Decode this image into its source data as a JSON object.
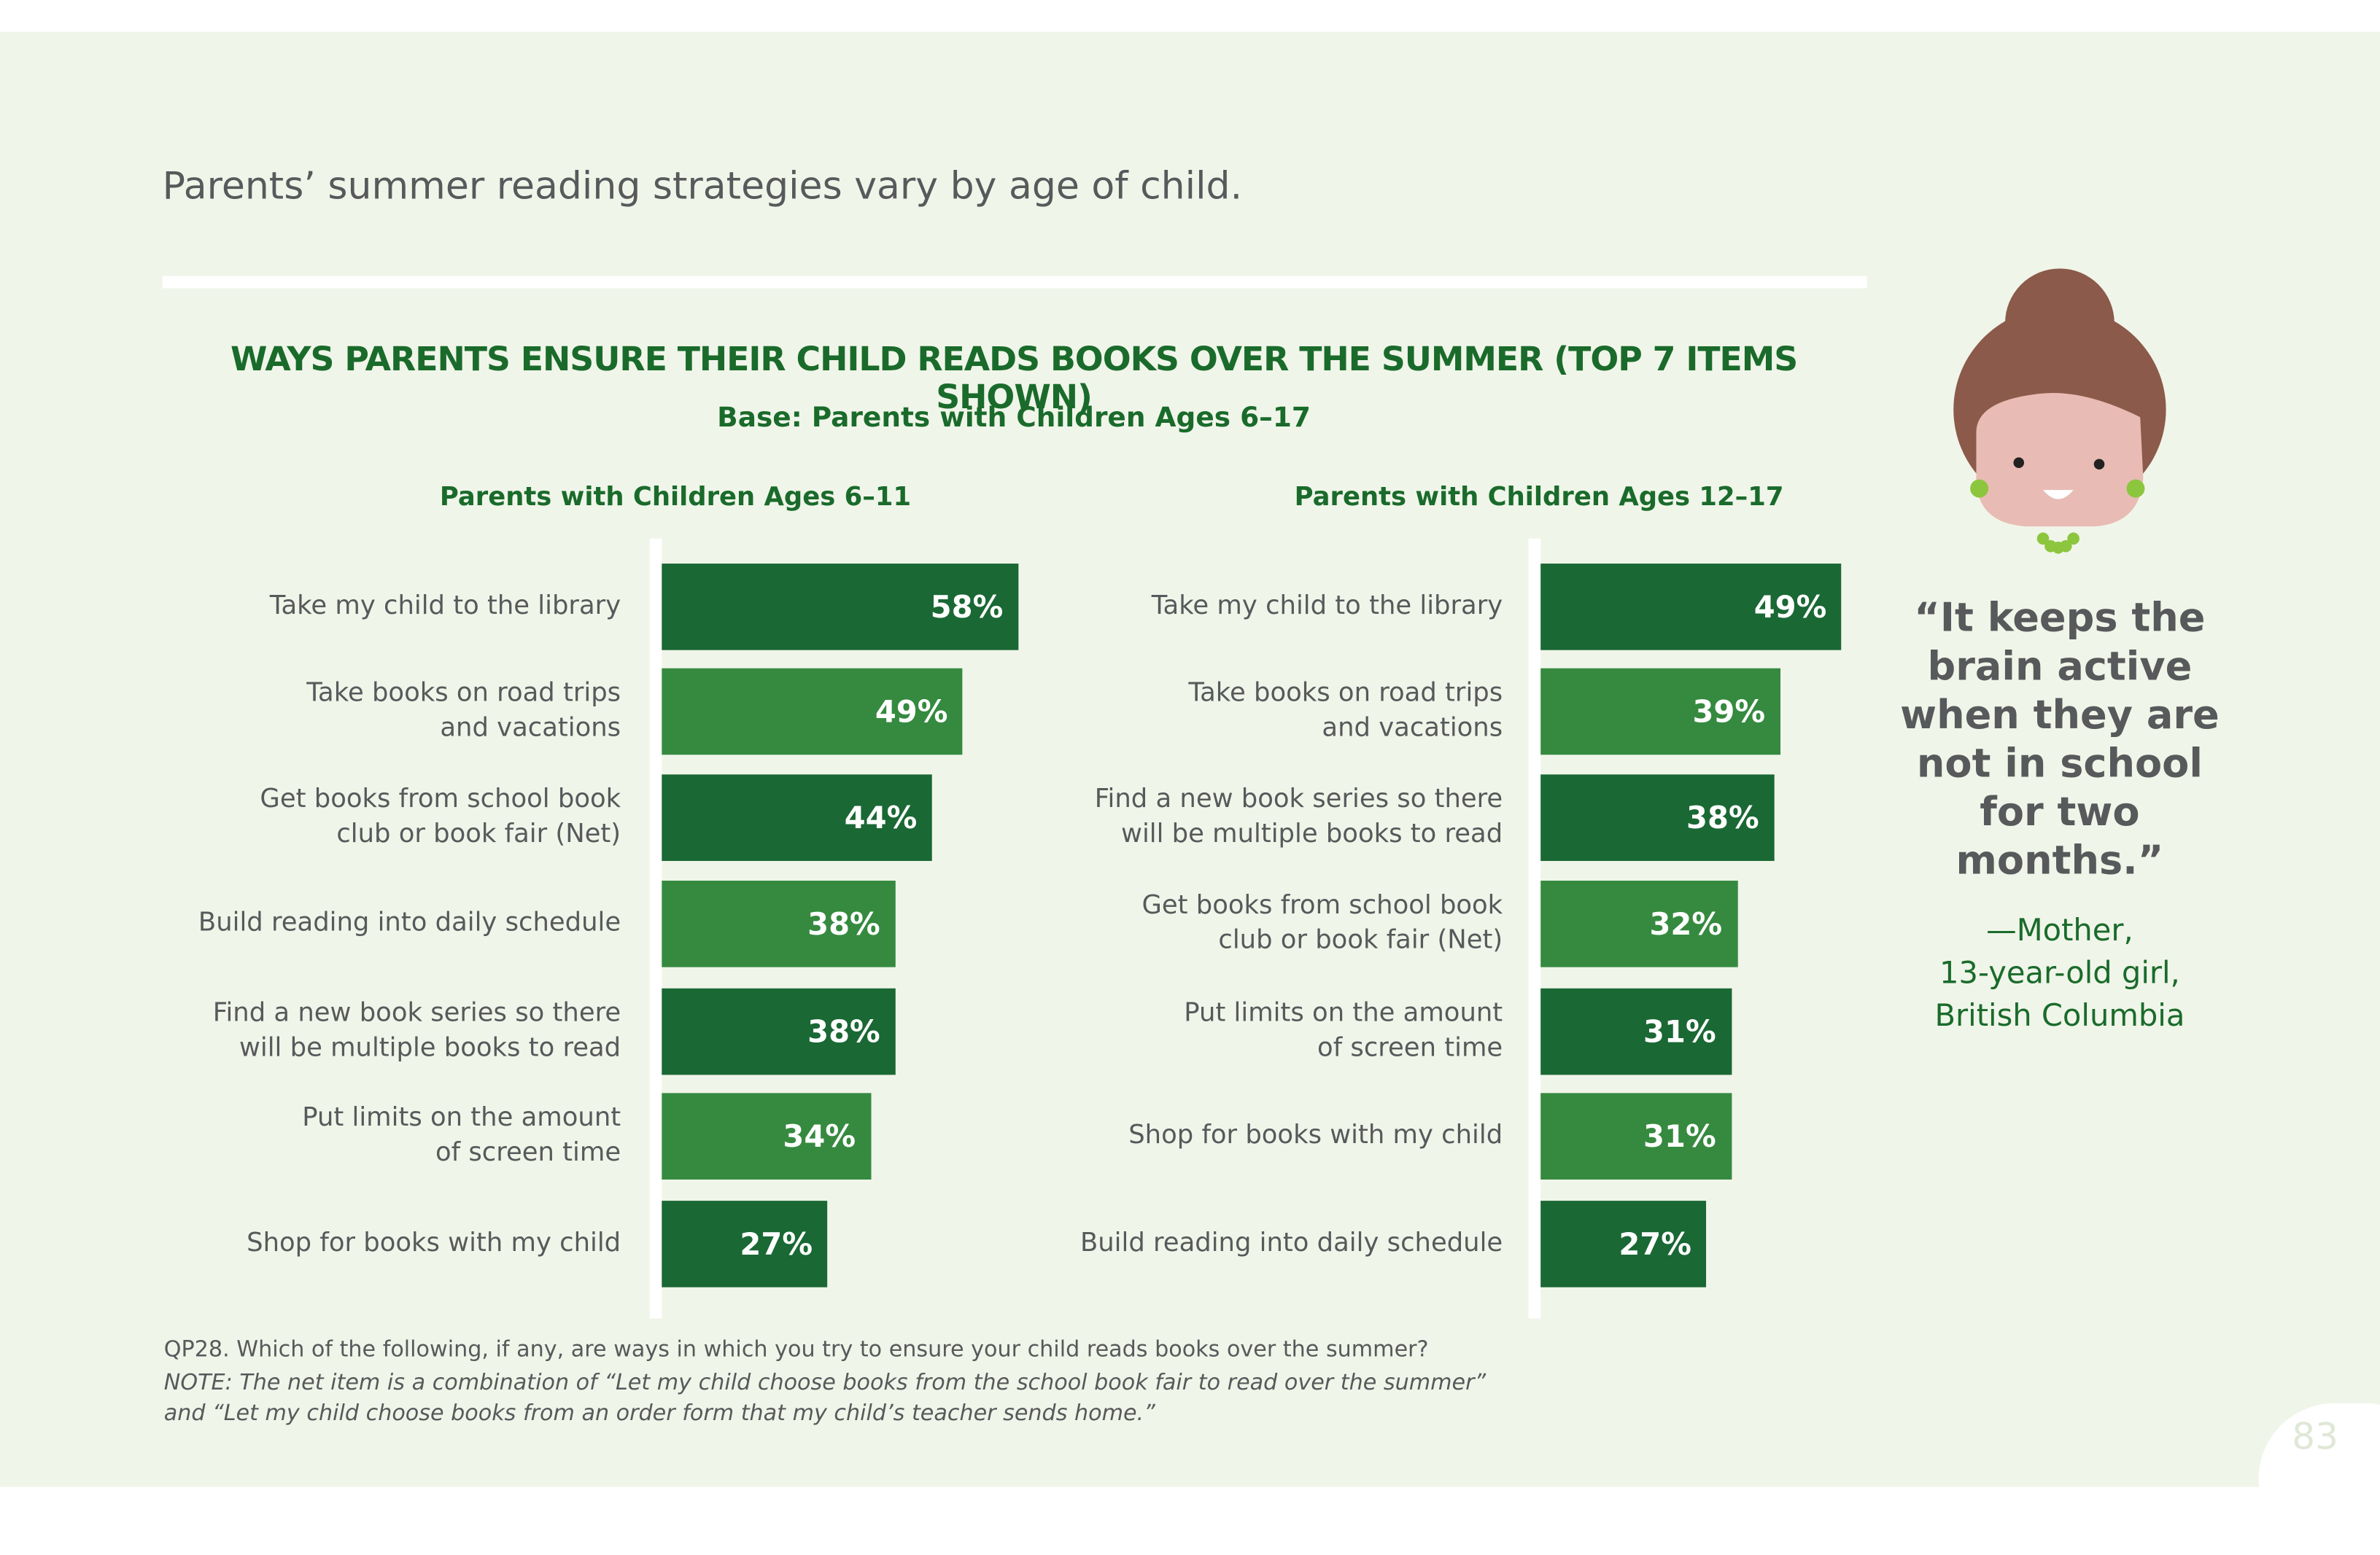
{
  "page_title": "Parents’ summer reading strategies vary by age of child.",
  "figure_title": "WAYS PARENTS ENSURE THEIR CHILD READS BOOKS OVER THE SUMMER (TOP 7 ITEMS SHOWN)",
  "figure_subtitle": "Base: Parents with Children Ages 6–17",
  "chart_data": [
    {
      "type": "bar",
      "orientation": "horizontal",
      "title": "Parents with Children Ages 6–11",
      "categories": [
        "Take my child to the library",
        "Take books on road trips\nand vacations",
        "Get books from school book\nclub or book fair (Net)",
        "Build reading into daily schedule",
        "Find a new book series so there\nwill be multiple books to read",
        "Put limits on the amount\nof screen time",
        "Shop for books with my child"
      ],
      "values": [
        58,
        49,
        44,
        38,
        38,
        34,
        27
      ],
      "value_labels": [
        "58%",
        "49%",
        "44%",
        "38%",
        "38%",
        "34%",
        "27%"
      ],
      "colors": [
        "#1a6834",
        "#358a3f",
        "#1a6834",
        "#358a3f",
        "#1a6834",
        "#358a3f",
        "#1a6834"
      ]
    },
    {
      "type": "bar",
      "orientation": "horizontal",
      "title": "Parents with Children Ages 12–17",
      "categories": [
        "Take my child to the library",
        "Take books on road trips\nand vacations",
        "Find a new book series so there\nwill be multiple books to read",
        "Get books from school book\nclub or book fair (Net)",
        "Put limits on the amount\nof screen time",
        "Shop for books with my child",
        "Build reading into daily schedule"
      ],
      "values": [
        49,
        39,
        38,
        32,
        31,
        31,
        27
      ],
      "value_labels": [
        "49%",
        "39%",
        "38%",
        "32%",
        "31%",
        "31%",
        "27%"
      ],
      "colors": [
        "#1a6834",
        "#358a3f",
        "#1a6834",
        "#358a3f",
        "#1a6834",
        "#358a3f",
        "#1a6834"
      ]
    }
  ],
  "quote": {
    "text": "“It keeps the\nbrain active\nwhen they are\nnot in school\nfor two\nmonths.”",
    "attribution": "—Mother,\n13-year-old girl,\nBritish Columbia"
  },
  "footnote": {
    "question": "QP28. Which of the following, if any, are ways in which you try to ensure your child reads books over the summer?",
    "note": "NOTE: The net item is a combination of “Let my child choose books from the school book fair to read over the summer”\nand “Let my child choose books from an order form that my child’s teacher sends home.”"
  },
  "page_number": "83"
}
